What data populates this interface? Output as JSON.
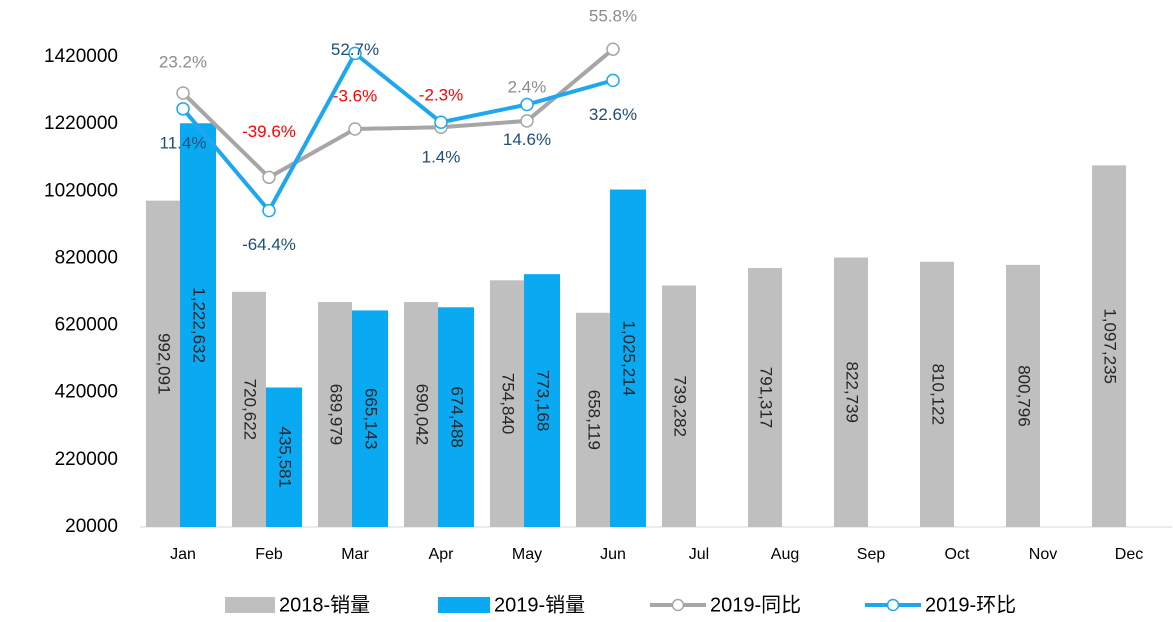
{
  "chart_data": {
    "type": "bar",
    "categories": [
      "Jan",
      "Feb",
      "Mar",
      "Apr",
      "May",
      "Jun",
      "Jul",
      "Aug",
      "Sep",
      "Oct",
      "Nov",
      "Dec"
    ],
    "ylim": [
      20000,
      1420000
    ],
    "yticks": [
      20000,
      220000,
      420000,
      620000,
      820000,
      1020000,
      1220000,
      1420000
    ],
    "y2lim": [
      -300,
      50
    ],
    "negative_label_color": "#ff0000",
    "series": [
      {
        "name": "2018-销量",
        "type": "bar",
        "color": "#bfbfbf",
        "values": [
          992091,
          720622,
          689979,
          690042,
          754840,
          658119,
          739282,
          791317,
          822739,
          810122,
          800796,
          1097235
        ],
        "value_labels": [
          "992,091",
          "720,622",
          "689,979",
          "690,042",
          "754,840",
          "658,119",
          "739,282",
          "791,317",
          "822,739",
          "810,122",
          "800,796",
          "1,097,235"
        ]
      },
      {
        "name": "2019-销量",
        "type": "bar",
        "color": "#0aaaf2",
        "values": [
          1222632,
          435581,
          665143,
          674488,
          773168,
          1025214,
          null,
          null,
          null,
          null,
          null,
          null
        ],
        "value_labels": [
          "1,222,632",
          "435,581",
          "665,143",
          "674,488",
          "773,168",
          "1,025,214",
          null,
          null,
          null,
          null,
          null,
          null
        ]
      },
      {
        "name": "2019-同比",
        "type": "line",
        "axis": "y2",
        "color": "#a6a6a6",
        "label_color": "#8c8c8c",
        "values": [
          23.2,
          -39.6,
          -3.6,
          -2.3,
          2.4,
          55.8,
          null,
          null,
          null,
          null,
          null,
          null
        ],
        "value_labels": [
          "23.2%",
          "-39.6%",
          "-3.6%",
          "-2.3%",
          "2.4%",
          "55.8%",
          null,
          null,
          null,
          null,
          null,
          null
        ]
      },
      {
        "name": "2019-环比",
        "type": "line",
        "axis": "y2",
        "color": "#1ea7f0",
        "label_color": "#1f4e79",
        "values": [
          11.4,
          -64.4,
          52.7,
          1.4,
          14.6,
          32.6,
          null,
          null,
          null,
          null,
          null,
          null
        ],
        "value_labels": [
          "11.4%",
          "-64.4%",
          "52.7%",
          "1.4%",
          "14.6%",
          "32.6%",
          null,
          null,
          null,
          null,
          null,
          null
        ]
      }
    ]
  }
}
